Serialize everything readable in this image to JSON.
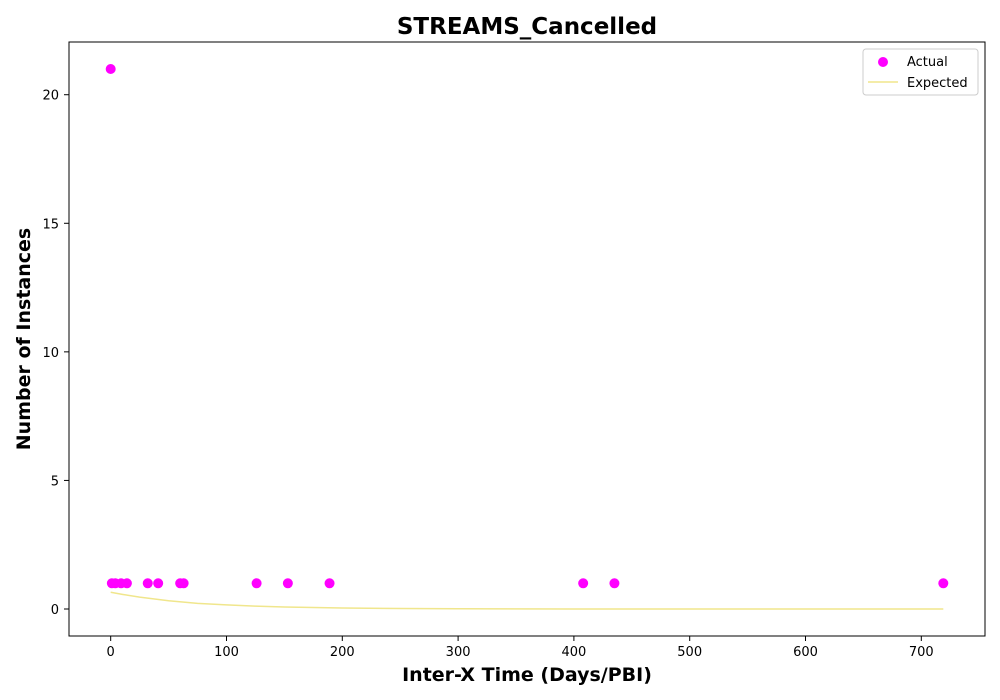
{
  "chart_data": {
    "type": "scatter",
    "title": "STREAMS_Cancelled",
    "xlabel": "Inter-X Time (Days/PBI)",
    "ylabel": "Number of Instances",
    "xlim": [
      -36,
      755
    ],
    "ylim": [
      -1.05,
      22.05
    ],
    "xticks": [
      0,
      100,
      200,
      300,
      400,
      500,
      600,
      700
    ],
    "yticks": [
      0,
      5,
      10,
      15,
      20
    ],
    "grid": false,
    "legend_position": "top-right",
    "colors": {
      "actual": "#ff00ff",
      "expected": "#f0e68c"
    },
    "series": [
      {
        "name": "Actual",
        "kind": "scatter",
        "points": [
          {
            "x": 0,
            "y": 21
          },
          {
            "x": 1,
            "y": 1
          },
          {
            "x": 4,
            "y": 1
          },
          {
            "x": 9,
            "y": 1
          },
          {
            "x": 14,
            "y": 1
          },
          {
            "x": 32,
            "y": 1
          },
          {
            "x": 41,
            "y": 1
          },
          {
            "x": 60,
            "y": 1
          },
          {
            "x": 63,
            "y": 1
          },
          {
            "x": 126,
            "y": 1
          },
          {
            "x": 153,
            "y": 1
          },
          {
            "x": 189,
            "y": 1
          },
          {
            "x": 408,
            "y": 1
          },
          {
            "x": 435,
            "y": 1
          },
          {
            "x": 719,
            "y": 1
          }
        ]
      },
      {
        "name": "Expected",
        "kind": "line",
        "points": [
          {
            "x": 0,
            "y": 0.65
          },
          {
            "x": 10,
            "y": 0.57
          },
          {
            "x": 25,
            "y": 0.46
          },
          {
            "x": 50,
            "y": 0.32
          },
          {
            "x": 75,
            "y": 0.22
          },
          {
            "x": 100,
            "y": 0.16
          },
          {
            "x": 125,
            "y": 0.11
          },
          {
            "x": 150,
            "y": 0.08
          },
          {
            "x": 200,
            "y": 0.04
          },
          {
            "x": 250,
            "y": 0.02
          },
          {
            "x": 300,
            "y": 0.01
          },
          {
            "x": 400,
            "y": 0.0
          },
          {
            "x": 500,
            "y": 0.0
          },
          {
            "x": 600,
            "y": 0.0
          },
          {
            "x": 719,
            "y": 0.0
          }
        ]
      }
    ]
  }
}
